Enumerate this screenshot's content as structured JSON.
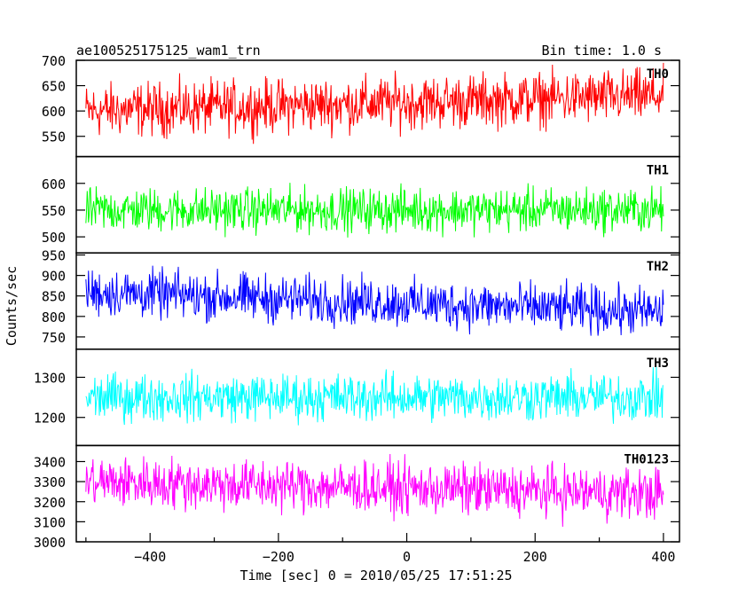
{
  "header": {
    "title": "ae100525175125_wam1_trn",
    "bin_time": "Bin time: 1.0 s"
  },
  "axes": {
    "ylabel": "Counts/sec",
    "xlabel": "Time [sec] 0 = 2010/05/25 17:51:25",
    "x_ticks": [
      -400,
      -200,
      0,
      200,
      400
    ]
  },
  "chart_data": {
    "type": "line",
    "x_range": [
      -515,
      425
    ],
    "x_data_extent": [
      -500,
      400
    ],
    "xlabel": "Time [sec] 0 = 2010/05/25 17:51:25",
    "ylabel": "Counts/sec",
    "series": [
      {
        "name": "TH0",
        "color": "#ff0000",
        "ylim": [
          510,
          700
        ],
        "yticks": [
          550,
          600,
          650,
          700
        ],
        "baseline_start": 600,
        "baseline_end": 630,
        "noise_amplitude": 45
      },
      {
        "name": "TH1",
        "color": "#00ff00",
        "ylim": [
          470,
          650
        ],
        "yticks": [
          500,
          550,
          600
        ],
        "baseline_start": 550,
        "baseline_end": 550,
        "noise_amplitude": 35
      },
      {
        "name": "TH2",
        "color": "#0000ff",
        "ylim": [
          720,
          955
        ],
        "yticks": [
          750,
          800,
          850,
          900,
          950
        ],
        "baseline_start": 860,
        "baseline_end": 810,
        "noise_amplitude": 50
      },
      {
        "name": "TH3",
        "color": "#00ffff",
        "ylim": [
          1130,
          1370
        ],
        "yticks": [
          1200,
          1300
        ],
        "baseline_start": 1250,
        "baseline_end": 1250,
        "noise_amplitude": 50
      },
      {
        "name": "TH0123",
        "color": "#ff00ff",
        "ylim": [
          3000,
          3480
        ],
        "yticks": [
          3000,
          3100,
          3200,
          3300,
          3400
        ],
        "baseline_start": 3300,
        "baseline_end": 3240,
        "noise_amplitude": 110
      }
    ]
  }
}
